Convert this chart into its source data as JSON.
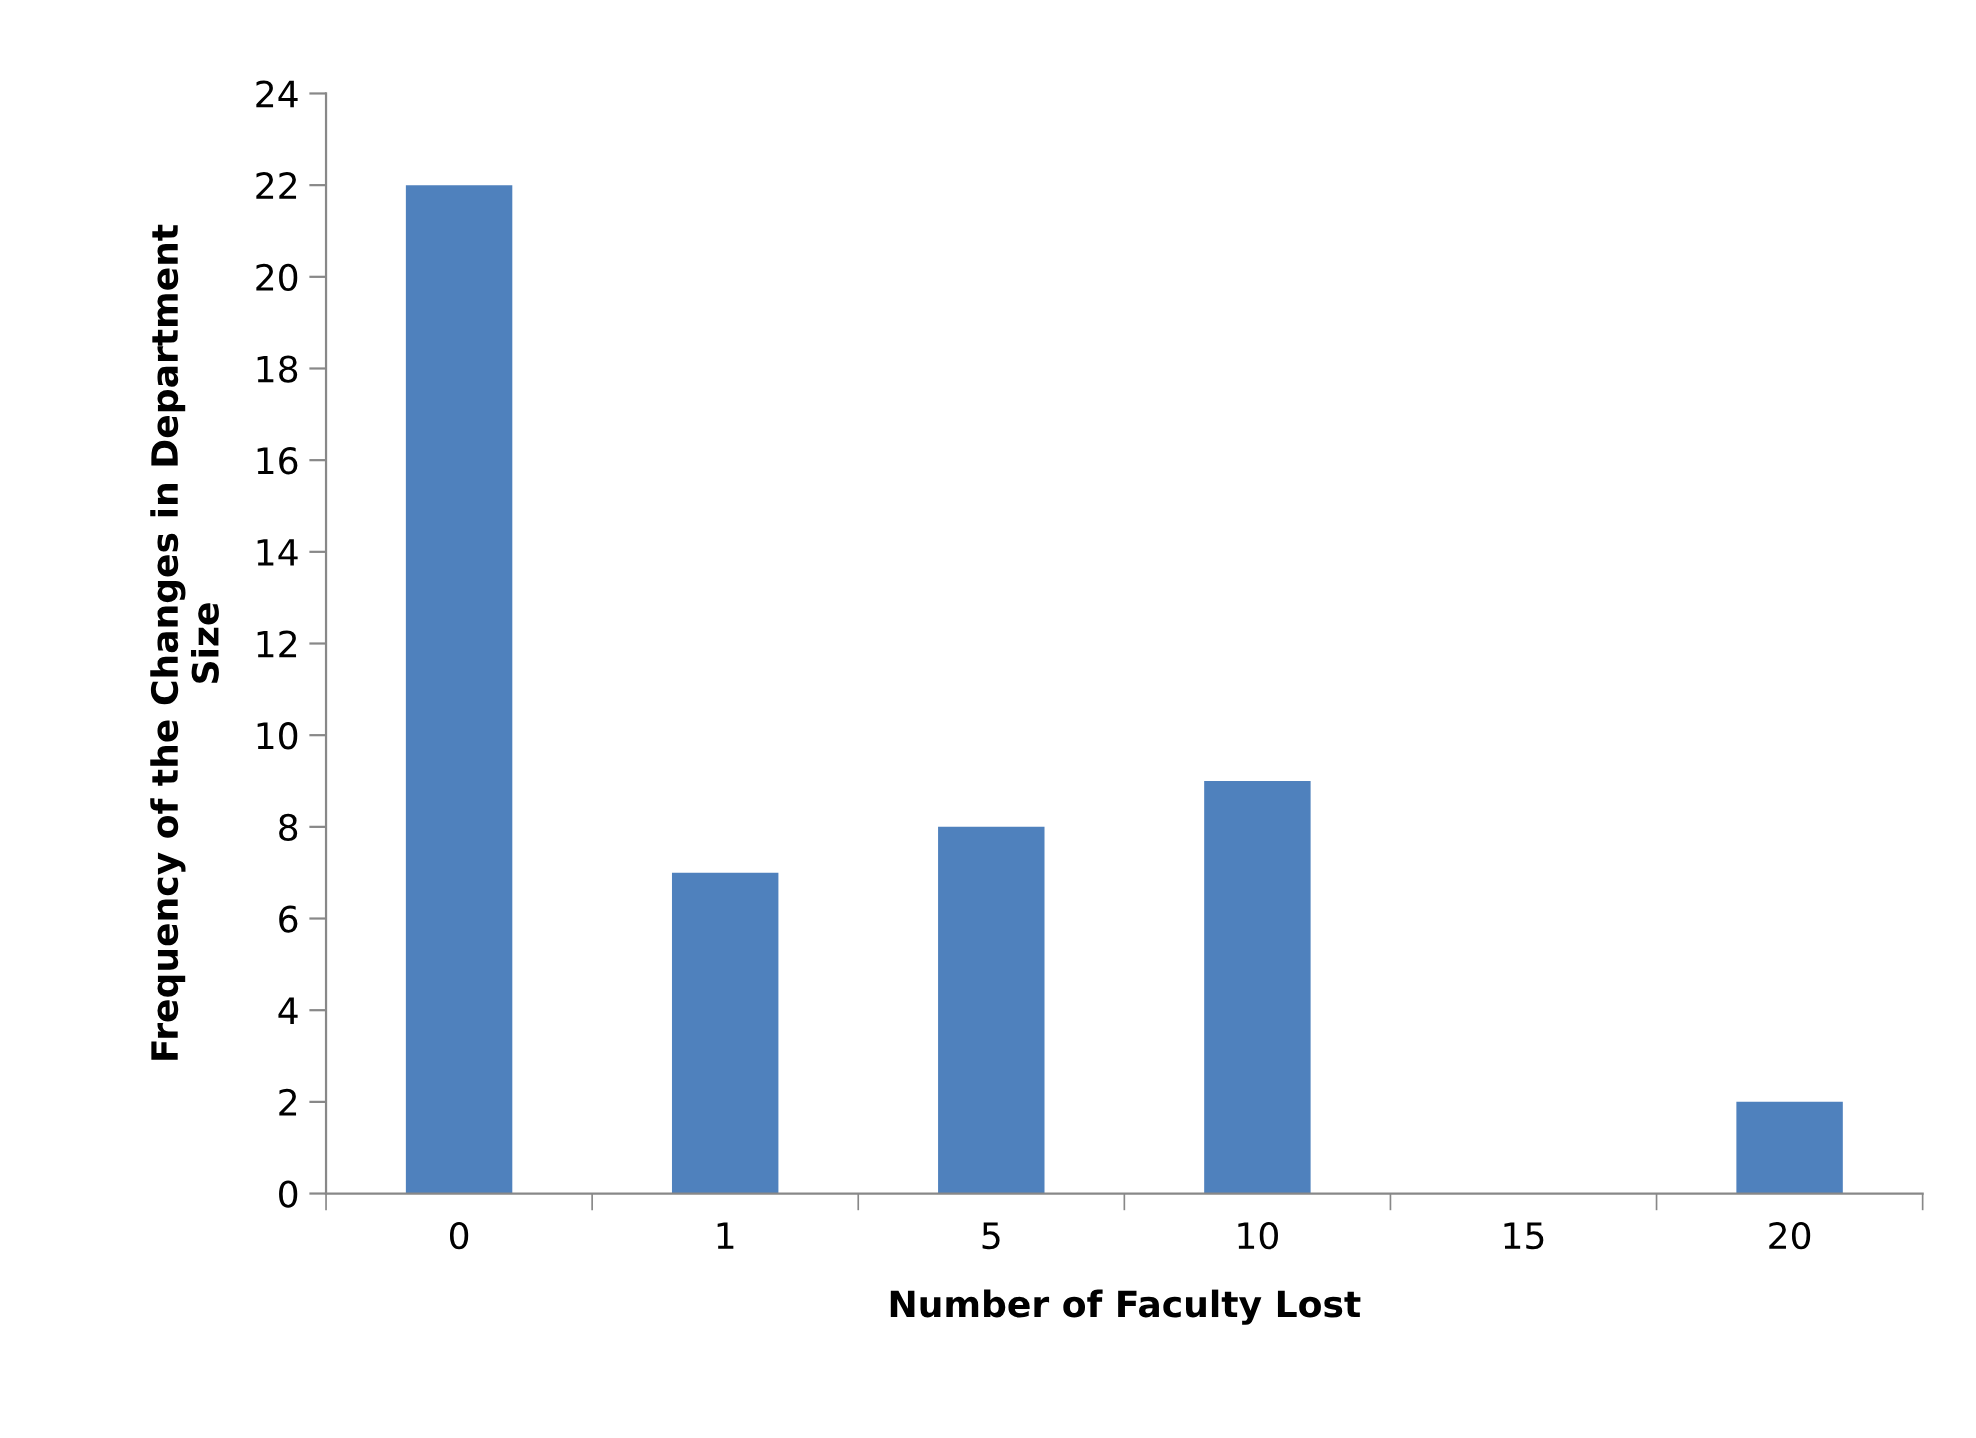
{
  "chart_data": {
    "type": "bar",
    "xlabel": "Number of Faculty Lost",
    "ylabel": "Frequency of the Changes in Department\nSize",
    "categories": [
      "0",
      "1",
      "5",
      "10",
      "15",
      "20"
    ],
    "values": [
      22,
      7,
      8,
      9,
      0,
      2
    ],
    "color": "#4f81bd",
    "ylim": [
      0,
      24
    ],
    "yticks": [
      0,
      2,
      4,
      6,
      8,
      10,
      12,
      14,
      16,
      18,
      20,
      22,
      24
    ],
    "grid": false,
    "legend": false
  }
}
